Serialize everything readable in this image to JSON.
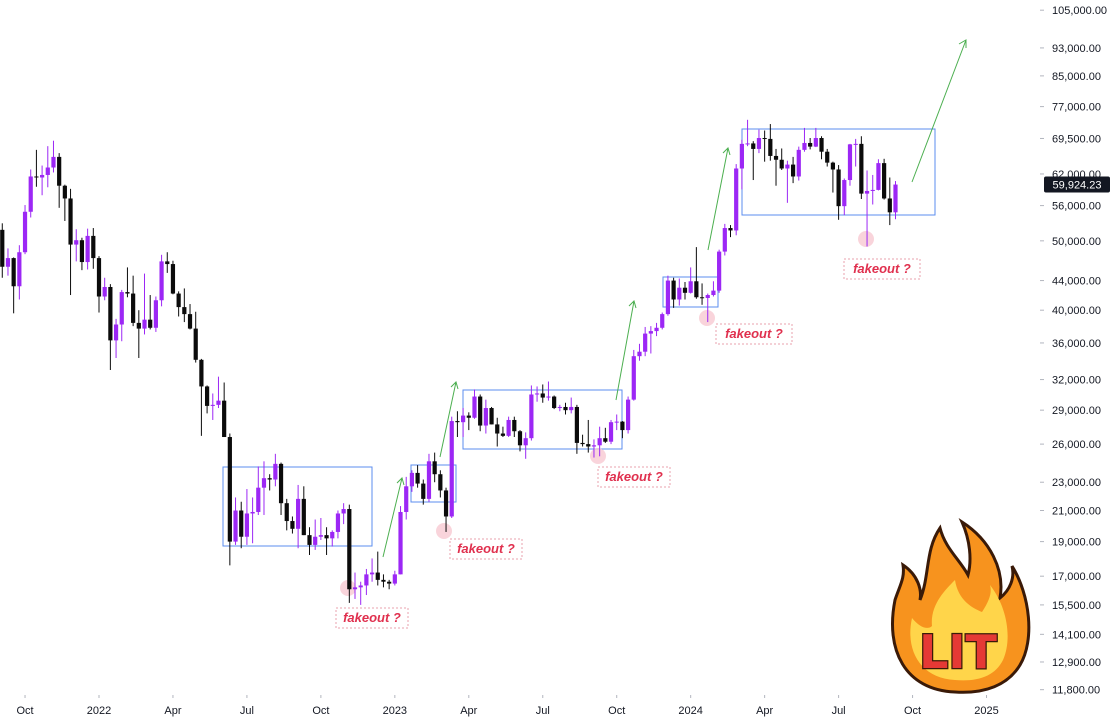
{
  "chart_data": {
    "type": "candlestick",
    "log_scale": true,
    "up_color": "#9c27f5",
    "down_color": "#0b0b0b",
    "open": [
      51800,
      46000,
      47300,
      43200,
      48200,
      54900,
      61500,
      61300,
      61800,
      63300,
      65500,
      59700,
      57300,
      49400,
      50100,
      46700,
      50800,
      47300,
      41800,
      43100,
      36300,
      38200,
      42400,
      42200,
      38400,
      37700,
      38800,
      37800,
      41300,
      46800,
      46400,
      42200,
      40400,
      39500,
      37700,
      34100,
      31300,
      29400,
      29500,
      29900,
      26600,
      19000,
      21000,
      19300,
      20800,
      20900,
      22600,
      23300,
      23200,
      24400,
      21500,
      20300,
      19800,
      21800,
      19400,
      18800,
      19300,
      19400,
      19200,
      19600,
      20800,
      21100,
      16300,
      16400,
      16500,
      17100,
      17200,
      16800,
      16700,
      16600,
      17100,
      20900,
      22700,
      23700,
      22900,
      21800,
      24600,
      23600,
      22400,
      20600,
      28000,
      27900,
      28500,
      28300,
      30300,
      27600,
      29200,
      27700,
      26900,
      26700,
      28100,
      27100,
      25900,
      26500,
      30500,
      30600,
      30200,
      30300,
      29200,
      29300,
      29000,
      29300,
      26100,
      26000,
      25800,
      25900,
      26500,
      26200,
      27900,
      27950,
      27200,
      30000,
      34500,
      35000,
      37100,
      37400,
      37800,
      39500,
      44000,
      41400,
      43000,
      42300,
      43900,
      41700,
      41600,
      42000,
      42600,
      48300,
      52100,
      51700,
      63100,
      68300,
      68400,
      67200,
      69600,
      69400,
      65700,
      64900,
      63100,
      63900,
      61500,
      67000,
      68500,
      67700,
      69600,
      66600,
      64300,
      62900,
      55900,
      60800,
      68200,
      68300,
      58200,
      58700,
      58900,
      64200,
      57300,
      54800
    ],
    "high": [
      52900,
      48800,
      47400,
      49300,
      56100,
      62900,
      67000,
      63700,
      67800,
      69000,
      66300,
      59900,
      59100,
      51900,
      50500,
      52000,
      52100,
      47600,
      44400,
      43500,
      38900,
      42700,
      45900,
      44700,
      40000,
      45000,
      42000,
      41800,
      47800,
      48200,
      46900,
      42500,
      42900,
      40800,
      39800,
      34200,
      31400,
      30600,
      32300,
      31700,
      26900,
      21900,
      21600,
      22500,
      21900,
      24200,
      24600,
      23600,
      25200,
      24500,
      21800,
      20600,
      22800,
      22700,
      19900,
      20400,
      20500,
      19900,
      19700,
      21000,
      21500,
      21400,
      17200,
      16700,
      17400,
      18000,
      18400,
      17100,
      16800,
      17300,
      21300,
      23400,
      23900,
      24300,
      23200,
      25200,
      25300,
      23900,
      22600,
      28400,
      28900,
      29200,
      28800,
      31000,
      30500,
      30000,
      29300,
      28300,
      27500,
      28400,
      28400,
      27200,
      27000,
      31400,
      31300,
      31500,
      31800,
      30400,
      29500,
      29700,
      30200,
      29500,
      26800,
      28100,
      26400,
      27500,
      27400,
      28100,
      28600,
      28000,
      30300,
      35200,
      35900,
      37900,
      38000,
      38400,
      39700,
      44700,
      44400,
      44300,
      43800,
      45900,
      49000,
      43600,
      42200,
      43900,
      48600,
      52800,
      52600,
      64000,
      69200,
      73800,
      68900,
      71500,
      71300,
      72800,
      67200,
      67300,
      64700,
      65500,
      67700,
      71900,
      69600,
      71900,
      70000,
      67200,
      64500,
      63800,
      61100,
      68300,
      69400,
      70000,
      62700,
      61800,
      65000,
      65100,
      61300,
      60600
    ],
    "low": [
      44400,
      44700,
      39600,
      41400,
      47900,
      53900,
      59500,
      57900,
      59400,
      62300,
      55600,
      53300,
      42000,
      46800,
      45500,
      45600,
      45700,
      39700,
      41300,
      33000,
      34300,
      36200,
      41700,
      38000,
      34300,
      37000,
      37600,
      37300,
      40500,
      45100,
      42100,
      39200,
      38500,
      37600,
      33800,
      26700,
      28700,
      28100,
      29200,
      26600,
      17600,
      18800,
      18600,
      18800,
      18900,
      20700,
      20700,
      22400,
      22700,
      20700,
      19700,
      19500,
      18600,
      19400,
      18200,
      18500,
      19100,
      18200,
      18700,
      19200,
      20100,
      15600,
      15800,
      15500,
      16000,
      16700,
      16500,
      16400,
      16300,
      16500,
      17100,
      20400,
      22300,
      22600,
      21400,
      21600,
      23000,
      21900,
      19600,
      20500,
      26600,
      26600,
      27200,
      28200,
      27100,
      26900,
      27700,
      25800,
      26600,
      26600,
      26600,
      25400,
      24800,
      26300,
      29800,
      29700,
      29900,
      29100,
      28900,
      28600,
      28700,
      25200,
      25800,
      25300,
      24900,
      25000,
      26100,
      26000,
      27200,
      26500,
      26900,
      29900,
      34000,
      34500,
      34800,
      36800,
      37600,
      39300,
      40300,
      40600,
      41400,
      42200,
      41500,
      40700,
      38500,
      41800,
      42300,
      47700,
      50600,
      50900,
      59000,
      67800,
      60800,
      66300,
      64500,
      64700,
      59700,
      62800,
      56500,
      60200,
      60700,
      66600,
      67100,
      67600,
      65000,
      63500,
      58400,
      53500,
      54300,
      59700,
      63500,
      57200,
      49100,
      56200,
      58800,
      57100,
      52600,
      53600
    ],
    "close": [
      46000,
      47300,
      43200,
      48200,
      54900,
      61500,
      61300,
      61800,
      63300,
      65500,
      59700,
      57300,
      49400,
      50100,
      46700,
      50800,
      47300,
      41800,
      43100,
      36300,
      38200,
      42400,
      42200,
      38400,
      37700,
      38800,
      37800,
      41300,
      46800,
      46400,
      42200,
      40400,
      39500,
      37700,
      34100,
      31300,
      29400,
      29500,
      29900,
      26600,
      19000,
      21000,
      19300,
      20800,
      20900,
      22600,
      23300,
      23200,
      24400,
      21500,
      20300,
      19800,
      21800,
      19400,
      18800,
      19300,
      19400,
      19200,
      19600,
      20800,
      21100,
      16300,
      16400,
      16500,
      17100,
      17200,
      16800,
      16700,
      16600,
      17100,
      20900,
      22700,
      23700,
      22900,
      21800,
      24600,
      23600,
      22400,
      20600,
      28000,
      27900,
      28500,
      28300,
      30300,
      27600,
      29200,
      27700,
      26900,
      26700,
      28100,
      27100,
      25900,
      26500,
      30500,
      30600,
      30200,
      30300,
      29200,
      29300,
      29000,
      29300,
      26100,
      26000,
      25800,
      25900,
      26500,
      26200,
      27900,
      27950,
      27200,
      30000,
      34500,
      35000,
      37100,
      37400,
      37800,
      39500,
      44000,
      41400,
      43000,
      42300,
      43900,
      41700,
      41600,
      42000,
      42600,
      48300,
      52100,
      51700,
      63100,
      68300,
      68400,
      67200,
      69600,
      69400,
      65700,
      64900,
      63100,
      63900,
      61500,
      67000,
      68500,
      67700,
      69600,
      66600,
      64300,
      62900,
      55900,
      60800,
      68200,
      68300,
      58200,
      58700,
      58900,
      64200,
      57300,
      54800,
      59924.23
    ],
    "xlim": [
      -0.4,
      182.4
    ],
    "xticks": [
      {
        "value": 4,
        "label": "Oct"
      },
      2022,
      {
        "value": 30,
        "label": "Apr"
      },
      {
        "value": 43,
        "label": "Jul"
      },
      {
        "value": 56,
        "label": "Oct"
      },
      2023,
      {
        "value": 82,
        "label": "Apr"
      },
      {
        "value": 95,
        "label": "Jul"
      },
      {
        "value": 108,
        "label": "Oct"
      },
      2024,
      {
        "value": 134,
        "label": "Apr"
      },
      {
        "value": 147,
        "label": "Jul"
      },
      {
        "value": 160,
        "label": "Oct"
      },
      2025
    ],
    "xtick_positions": [
      17,
      69,
      121,
      173
    ],
    "ylim": [
      11600,
      108500
    ],
    "yticks": [
      {
        "value": 105000,
        "label": "105,000.00"
      },
      {
        "value": 93000,
        "label": "93,000.00"
      },
      {
        "value": 85000,
        "label": "85,000.00"
      },
      {
        "value": 77000,
        "label": "77,000.00"
      },
      {
        "value": 69500,
        "label": "69,500.00"
      },
      {
        "value": 62000,
        "label": "62,000.00"
      },
      {
        "value": 56000,
        "label": "56,000.00"
      },
      {
        "value": 50000,
        "label": "50,000.00"
      },
      {
        "value": 44000,
        "label": "44,000.00"
      },
      {
        "value": 40000,
        "label": "40,000.00"
      },
      {
        "value": 36000,
        "label": "36,000.00"
      },
      {
        "value": 32000,
        "label": "32,000.00"
      },
      {
        "value": 29000,
        "label": "29,000.00"
      },
      {
        "value": 26000,
        "label": "26,000.00"
      },
      {
        "value": 23000,
        "label": "23,000.00"
      },
      {
        "value": 21000,
        "label": "21,000.00"
      },
      {
        "value": 19000,
        "label": "19,000.00"
      },
      {
        "value": 17000,
        "label": "17,000.00"
      },
      {
        "value": 15500,
        "label": "15,500.00"
      },
      {
        "value": 14100,
        "label": "14,100.00"
      },
      {
        "value": 12900,
        "label": "12,900.00"
      },
      {
        "value": 11800,
        "label": "11,800.00"
      }
    ],
    "last_price": {
      "value": 59924.23,
      "label": "59,924.23"
    },
    "annotations": [
      "fakeout ?",
      "fakeout ?",
      "fakeout ?",
      "fakeout ?",
      "fakeout ?"
    ],
    "sticker": "LIT"
  }
}
